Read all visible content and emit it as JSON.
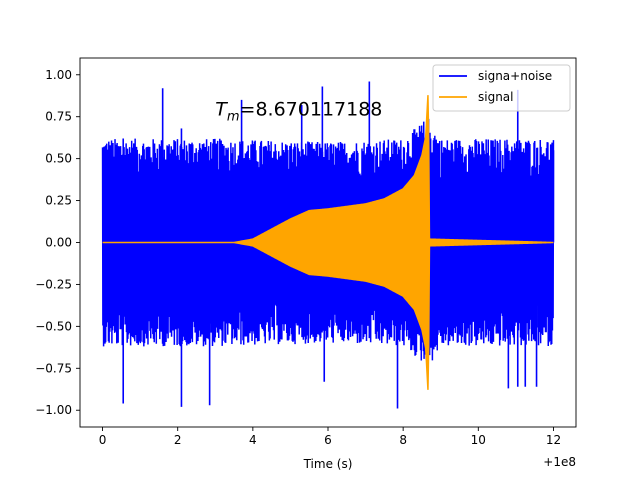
{
  "chart_data": {
    "type": "line",
    "title": "",
    "xlabel": "Time (s)",
    "ylabel": "",
    "x_offset_label": "+1e8",
    "xlim": [
      -0.6,
      12.6
    ],
    "ylim": [
      -1.1,
      1.1
    ],
    "x_ticks": [
      0,
      2,
      4,
      6,
      8,
      10,
      12
    ],
    "x_tick_labels": [
      "0",
      "2",
      "4",
      "6",
      "8",
      "10",
      "12"
    ],
    "y_ticks": [
      -1.0,
      -0.75,
      -0.5,
      -0.25,
      0.0,
      0.25,
      0.5,
      0.75,
      1.0
    ],
    "y_tick_labels": [
      "−1.00",
      "−0.75",
      "−0.50",
      "−0.25",
      "0.00",
      "0.25",
      "0.50",
      "0.75",
      "1.00"
    ],
    "annotation": {
      "symbol": "T",
      "subscript": "m",
      "text": "=8.670117188",
      "x": 3.0,
      "y": 0.8
    },
    "legend": {
      "placement": "top-right"
    },
    "series": [
      {
        "name": "signa+noise",
        "color": "#0000ff",
        "kind": "noise-band",
        "x_range": [
          0,
          12
        ],
        "envelope": [
          [
            0,
            0.62
          ],
          [
            3,
            0.62
          ],
          [
            6,
            0.6
          ],
          [
            8,
            0.62
          ],
          [
            8.67,
            0.75
          ],
          [
            9,
            0.62
          ],
          [
            12,
            0.62
          ]
        ],
        "peaks": [
          [
            0.55,
            0.62
          ],
          [
            1.6,
            0.92
          ],
          [
            2.1,
            0.68
          ],
          [
            3.7,
            0.85
          ],
          [
            5.3,
            0.82
          ],
          [
            5.85,
            0.93
          ],
          [
            7.1,
            0.96
          ],
          [
            11.05,
            0.91
          ],
          [
            12.0,
            0.55
          ]
        ],
        "troughs": [
          [
            0.55,
            -0.96
          ],
          [
            2.1,
            -0.98
          ],
          [
            2.85,
            -0.97
          ],
          [
            5.9,
            -0.83
          ],
          [
            7.85,
            -0.99
          ],
          [
            10.8,
            -0.87
          ],
          [
            11.05,
            -0.86
          ],
          [
            11.25,
            -0.86
          ],
          [
            11.55,
            -0.86
          ]
        ]
      },
      {
        "name": "signal",
        "color": "#ffa500",
        "kind": "chirp-envelope",
        "envelope": [
          [
            0,
            0.0
          ],
          [
            3.5,
            0.0
          ],
          [
            4.0,
            0.02
          ],
          [
            4.5,
            0.08
          ],
          [
            5.0,
            0.14
          ],
          [
            5.5,
            0.19
          ],
          [
            6.0,
            0.2
          ],
          [
            7.0,
            0.23
          ],
          [
            7.5,
            0.26
          ],
          [
            8.0,
            0.32
          ],
          [
            8.3,
            0.4
          ],
          [
            8.5,
            0.52
          ],
          [
            8.6,
            0.63
          ],
          [
            8.67,
            0.92
          ],
          [
            8.7,
            0.02
          ],
          [
            12.0,
            0.0
          ]
        ]
      }
    ]
  }
}
